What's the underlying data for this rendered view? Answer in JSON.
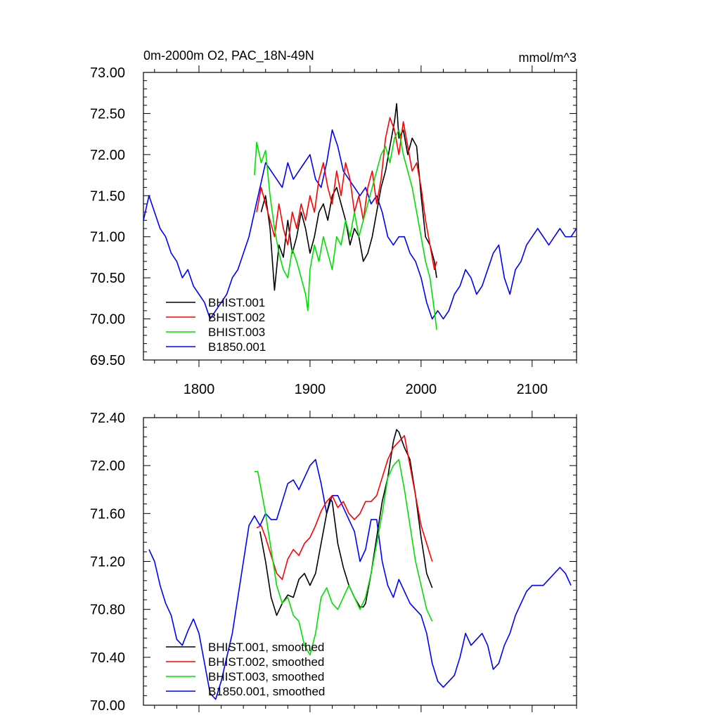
{
  "colors": {
    "BHIST.001": "#000000",
    "BHIST.002": "#ff0000",
    "BHIST.003": "#00e000",
    "B1850.001": "#0000ff"
  },
  "chart_data": [
    {
      "type": "line",
      "title": "0m-2000m O2, PAC_18N-49N",
      "units": "mmol/m^3",
      "xlim": [
        1750,
        2140
      ],
      "ylim": [
        69.5,
        73.0
      ],
      "xticks": [
        1800,
        1900,
        2000,
        2100
      ],
      "yticks": [
        69.5,
        70.0,
        70.5,
        71.0,
        71.5,
        72.0,
        72.5,
        73.0
      ],
      "ytick_labels": [
        "69.50",
        "70.00",
        "70.50",
        "71.00",
        "71.50",
        "72.00",
        "72.50",
        "73.00"
      ],
      "legend_position": "bottom-left",
      "series": [
        {
          "name": "BHIST.001",
          "color": "#000000",
          "x": [
            1856,
            1860,
            1864,
            1868,
            1872,
            1876,
            1880,
            1884,
            1888,
            1892,
            1896,
            1900,
            1904,
            1908,
            1912,
            1916,
            1920,
            1924,
            1928,
            1932,
            1936,
            1940,
            1944,
            1948,
            1952,
            1956,
            1960,
            1964,
            1968,
            1972,
            1976,
            1978,
            1980,
            1984,
            1988,
            1992,
            1996,
            2000,
            2004,
            2008,
            2012,
            2014
          ],
          "y": [
            71.3,
            71.5,
            71.1,
            70.35,
            70.9,
            70.75,
            71.2,
            70.8,
            71.0,
            71.3,
            71.1,
            70.8,
            71.0,
            71.3,
            71.4,
            71.2,
            71.5,
            71.6,
            71.4,
            71.2,
            70.9,
            71.1,
            71.0,
            70.7,
            70.8,
            71.0,
            71.3,
            71.6,
            71.8,
            72.1,
            72.4,
            72.62,
            72.2,
            72.3,
            72.0,
            72.2,
            72.1,
            71.5,
            71.0,
            70.9,
            70.7,
            70.5
          ]
        },
        {
          "name": "BHIST.002",
          "color": "#ff0000",
          "x": [
            1852,
            1856,
            1860,
            1864,
            1868,
            1872,
            1876,
            1880,
            1884,
            1888,
            1892,
            1896,
            1900,
            1904,
            1908,
            1912,
            1916,
            1920,
            1924,
            1928,
            1932,
            1936,
            1940,
            1944,
            1948,
            1952,
            1956,
            1960,
            1964,
            1968,
            1972,
            1976,
            1980,
            1984,
            1988,
            1992,
            1996,
            2000,
            2004,
            2008,
            2012,
            2014
          ],
          "y": [
            71.3,
            71.6,
            71.4,
            71.2,
            71.0,
            71.4,
            71.1,
            70.9,
            71.3,
            71.1,
            71.4,
            71.2,
            71.5,
            71.3,
            71.7,
            71.9,
            71.6,
            71.4,
            71.8,
            71.5,
            71.9,
            71.7,
            71.3,
            71.5,
            71.2,
            71.6,
            71.8,
            71.4,
            71.7,
            72.2,
            72.45,
            72.3,
            72.0,
            72.4,
            72.1,
            71.8,
            71.9,
            71.6,
            71.2,
            70.9,
            70.6,
            70.7
          ]
        },
        {
          "name": "BHIST.003",
          "color": "#00e000",
          "x": [
            1850,
            1852,
            1856,
            1860,
            1864,
            1868,
            1872,
            1876,
            1880,
            1884,
            1888,
            1892,
            1896,
            1898,
            1900,
            1904,
            1908,
            1912,
            1916,
            1920,
            1924,
            1928,
            1932,
            1936,
            1940,
            1944,
            1948,
            1952,
            1956,
            1960,
            1964,
            1968,
            1972,
            1976,
            1980,
            1984,
            1988,
            1992,
            1996,
            2000,
            2004,
            2008,
            2012,
            2014
          ],
          "y": [
            71.75,
            72.15,
            71.9,
            72.05,
            71.5,
            71.1,
            70.8,
            70.6,
            70.5,
            70.85,
            70.7,
            70.5,
            70.3,
            70.1,
            70.6,
            70.9,
            70.7,
            71.0,
            70.8,
            70.6,
            71.0,
            70.9,
            71.2,
            71.0,
            71.3,
            71.0,
            71.2,
            71.4,
            71.6,
            71.8,
            72.0,
            72.1,
            71.9,
            72.2,
            72.3,
            72.0,
            71.8,
            71.6,
            71.3,
            71.0,
            70.7,
            70.5,
            70.1,
            69.87
          ]
        },
        {
          "name": "B1850.001",
          "color": "#0000ff",
          "x": [
            1750,
            1755,
            1760,
            1765,
            1770,
            1775,
            1780,
            1785,
            1790,
            1795,
            1800,
            1805,
            1810,
            1815,
            1820,
            1825,
            1830,
            1835,
            1840,
            1845,
            1850,
            1855,
            1860,
            1865,
            1870,
            1875,
            1880,
            1885,
            1890,
            1895,
            1900,
            1905,
            1910,
            1915,
            1920,
            1925,
            1930,
            1935,
            1940,
            1945,
            1950,
            1955,
            1960,
            1965,
            1970,
            1975,
            1980,
            1985,
            1990,
            1995,
            2000,
            2005,
            2010,
            2015,
            2020,
            2025,
            2030,
            2035,
            2040,
            2045,
            2050,
            2055,
            2060,
            2065,
            2070,
            2075,
            2080,
            2085,
            2090,
            2095,
            2100,
            2105,
            2110,
            2115,
            2120,
            2125,
            2130,
            2135,
            2140
          ],
          "y": [
            71.2,
            71.5,
            71.3,
            71.1,
            71.0,
            70.8,
            70.7,
            70.5,
            70.6,
            70.4,
            70.3,
            70.2,
            70.0,
            70.1,
            70.2,
            70.3,
            70.5,
            70.6,
            70.8,
            71.0,
            71.3,
            71.6,
            71.9,
            71.8,
            71.7,
            71.6,
            71.9,
            71.7,
            71.8,
            71.9,
            72.0,
            71.7,
            71.6,
            71.9,
            72.3,
            72.1,
            71.8,
            71.7,
            71.6,
            71.5,
            71.6,
            71.4,
            71.5,
            71.3,
            71.0,
            70.9,
            71.0,
            71.0,
            70.8,
            70.7,
            70.5,
            70.2,
            70.0,
            70.1,
            70.0,
            70.1,
            70.3,
            70.4,
            70.6,
            70.5,
            70.3,
            70.4,
            70.6,
            70.8,
            70.9,
            70.5,
            70.3,
            70.6,
            70.7,
            70.9,
            71.0,
            71.1,
            71.0,
            70.9,
            71.0,
            71.1,
            71.0,
            71.0,
            71.1
          ]
        }
      ]
    },
    {
      "type": "line",
      "xlim": [
        1750,
        2140
      ],
      "ylim": [
        70.0,
        72.4
      ],
      "xticks": [
        1800,
        1900,
        2000,
        2100
      ],
      "yticks": [
        70.0,
        70.4,
        70.8,
        71.2,
        71.6,
        72.0,
        72.4
      ],
      "ytick_labels": [
        "70.00",
        "70.40",
        "70.80",
        "71.20",
        "71.60",
        "72.00",
        "72.40"
      ],
      "legend_position": "bottom-left",
      "series": [
        {
          "name": "BHIST.001, smoothed",
          "color": "#000000",
          "x": [
            1855,
            1860,
            1865,
            1870,
            1875,
            1880,
            1885,
            1890,
            1895,
            1900,
            1905,
            1910,
            1915,
            1918,
            1920,
            1925,
            1930,
            1935,
            1940,
            1945,
            1948,
            1950,
            1955,
            1960,
            1965,
            1970,
            1975,
            1978,
            1980,
            1985,
            1990,
            1995,
            2000,
            2005,
            2010
          ],
          "y": [
            71.45,
            71.2,
            70.9,
            70.75,
            70.85,
            70.92,
            70.9,
            71.05,
            71.1,
            71.0,
            71.1,
            71.35,
            71.6,
            71.72,
            71.7,
            71.35,
            71.15,
            71.0,
            70.9,
            70.82,
            70.82,
            70.85,
            71.1,
            71.4,
            71.7,
            71.9,
            72.2,
            72.3,
            72.28,
            72.15,
            72.05,
            71.75,
            71.4,
            71.1,
            70.98
          ]
        },
        {
          "name": "BHIST.002, smoothed",
          "color": "#ff0000",
          "x": [
            1852,
            1856,
            1860,
            1865,
            1870,
            1875,
            1880,
            1885,
            1890,
            1895,
            1900,
            1905,
            1910,
            1915,
            1920,
            1925,
            1930,
            1935,
            1940,
            1945,
            1950,
            1955,
            1960,
            1965,
            1970,
            1975,
            1980,
            1985,
            1990,
            1995,
            2000,
            2005,
            2010
          ],
          "y": [
            71.48,
            71.5,
            71.4,
            71.25,
            71.1,
            71.05,
            71.22,
            71.3,
            71.25,
            71.35,
            71.4,
            71.5,
            71.62,
            71.7,
            71.75,
            71.65,
            71.7,
            71.6,
            71.55,
            71.6,
            71.7,
            71.7,
            71.75,
            71.9,
            72.05,
            72.15,
            72.2,
            72.25,
            72.0,
            71.75,
            71.5,
            71.35,
            71.2
          ]
        },
        {
          "name": "BHIST.003, smoothed",
          "color": "#00e000",
          "x": [
            1850,
            1853,
            1856,
            1860,
            1865,
            1870,
            1875,
            1880,
            1885,
            1890,
            1895,
            1900,
            1905,
            1910,
            1915,
            1920,
            1925,
            1930,
            1935,
            1940,
            1945,
            1950,
            1955,
            1960,
            1965,
            1970,
            1975,
            1980,
            1985,
            1990,
            1995,
            2000,
            2005,
            2010
          ],
          "y": [
            71.95,
            71.95,
            71.8,
            71.6,
            71.3,
            71.0,
            70.85,
            70.9,
            70.75,
            70.7,
            70.5,
            70.42,
            70.6,
            70.9,
            70.98,
            70.85,
            70.8,
            70.9,
            71.0,
            70.9,
            70.8,
            70.9,
            71.1,
            71.35,
            71.6,
            71.9,
            72.0,
            72.05,
            71.8,
            71.5,
            71.2,
            71.0,
            70.8,
            70.7
          ]
        },
        {
          "name": "B1850.001, smoothed",
          "color": "#0000ff",
          "x": [
            1755,
            1760,
            1765,
            1770,
            1775,
            1780,
            1785,
            1790,
            1795,
            1800,
            1805,
            1810,
            1815,
            1820,
            1825,
            1830,
            1835,
            1840,
            1845,
            1850,
            1855,
            1860,
            1865,
            1870,
            1875,
            1880,
            1885,
            1890,
            1895,
            1900,
            1905,
            1910,
            1915,
            1920,
            1925,
            1930,
            1935,
            1940,
            1945,
            1950,
            1955,
            1960,
            1965,
            1970,
            1975,
            1980,
            1985,
            1990,
            1995,
            2000,
            2005,
            2010,
            2015,
            2020,
            2025,
            2030,
            2035,
            2040,
            2045,
            2050,
            2055,
            2060,
            2065,
            2070,
            2075,
            2080,
            2085,
            2090,
            2095,
            2100,
            2105,
            2110,
            2115,
            2120,
            2125,
            2130,
            2135
          ],
          "y": [
            71.3,
            71.2,
            71.0,
            70.85,
            70.75,
            70.55,
            70.5,
            70.62,
            70.72,
            70.6,
            70.35,
            70.1,
            70.05,
            70.2,
            70.4,
            70.6,
            70.9,
            71.2,
            71.5,
            71.58,
            71.5,
            71.6,
            71.55,
            71.55,
            71.7,
            71.85,
            71.88,
            71.8,
            71.9,
            72.0,
            72.05,
            71.85,
            71.6,
            71.75,
            71.75,
            71.65,
            71.55,
            71.45,
            71.2,
            71.3,
            71.55,
            71.55,
            71.2,
            71.0,
            70.9,
            71.05,
            70.95,
            70.85,
            70.8,
            70.75,
            70.6,
            70.35,
            70.2,
            70.15,
            70.2,
            70.25,
            70.4,
            70.6,
            70.5,
            70.55,
            70.6,
            70.5,
            70.3,
            70.35,
            70.5,
            70.6,
            70.75,
            70.85,
            70.95,
            71.0,
            71.0,
            71.0,
            71.05,
            71.1,
            71.15,
            71.1,
            71.0
          ]
        }
      ]
    }
  ]
}
